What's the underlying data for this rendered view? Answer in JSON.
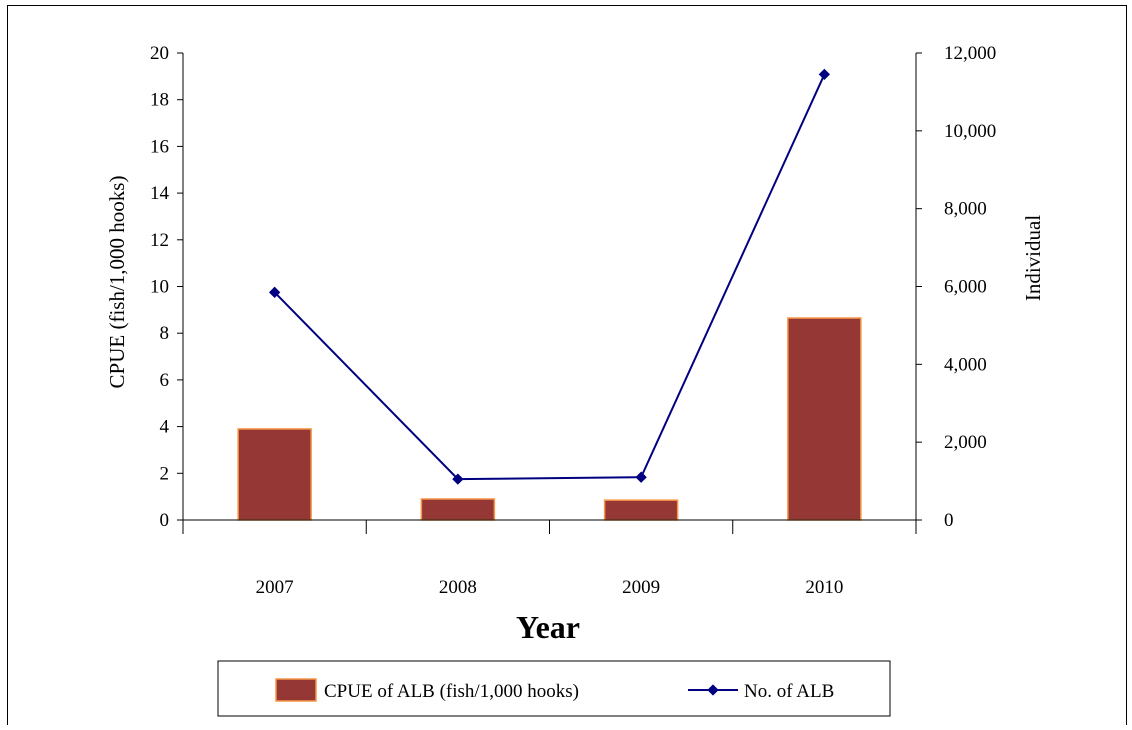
{
  "chart_data": {
    "type": "bar",
    "categories": [
      "2007",
      "2008",
      "2009",
      "2010"
    ],
    "series": [
      {
        "name": "CPUE of ALB (fish/1,000 hooks)",
        "type": "bar",
        "axis": "left",
        "values": [
          3.9,
          0.9,
          0.85,
          8.65
        ],
        "color": "#953735",
        "edge_color": "#f79646"
      },
      {
        "name": "No. of ALB",
        "type": "line",
        "axis": "right",
        "values": [
          5850,
          1050,
          1100,
          11450
        ],
        "color": "#000080"
      }
    ],
    "xlabel": "Year",
    "ylabel_left": "CPUE (fish/1,000 hooks)",
    "ylabel_right": "Individual",
    "ylim_left": [
      0,
      20
    ],
    "ylim_right": [
      0,
      12000
    ],
    "yticks_left": [
      "0",
      "2",
      "4",
      "6",
      "8",
      "10",
      "12",
      "14",
      "16",
      "18",
      "20"
    ],
    "yticks_right": [
      "0",
      "2,000",
      "4,000",
      "6,000",
      "8,000",
      "10,000",
      "12,000"
    ],
    "grid": false,
    "legend": "bottom"
  }
}
